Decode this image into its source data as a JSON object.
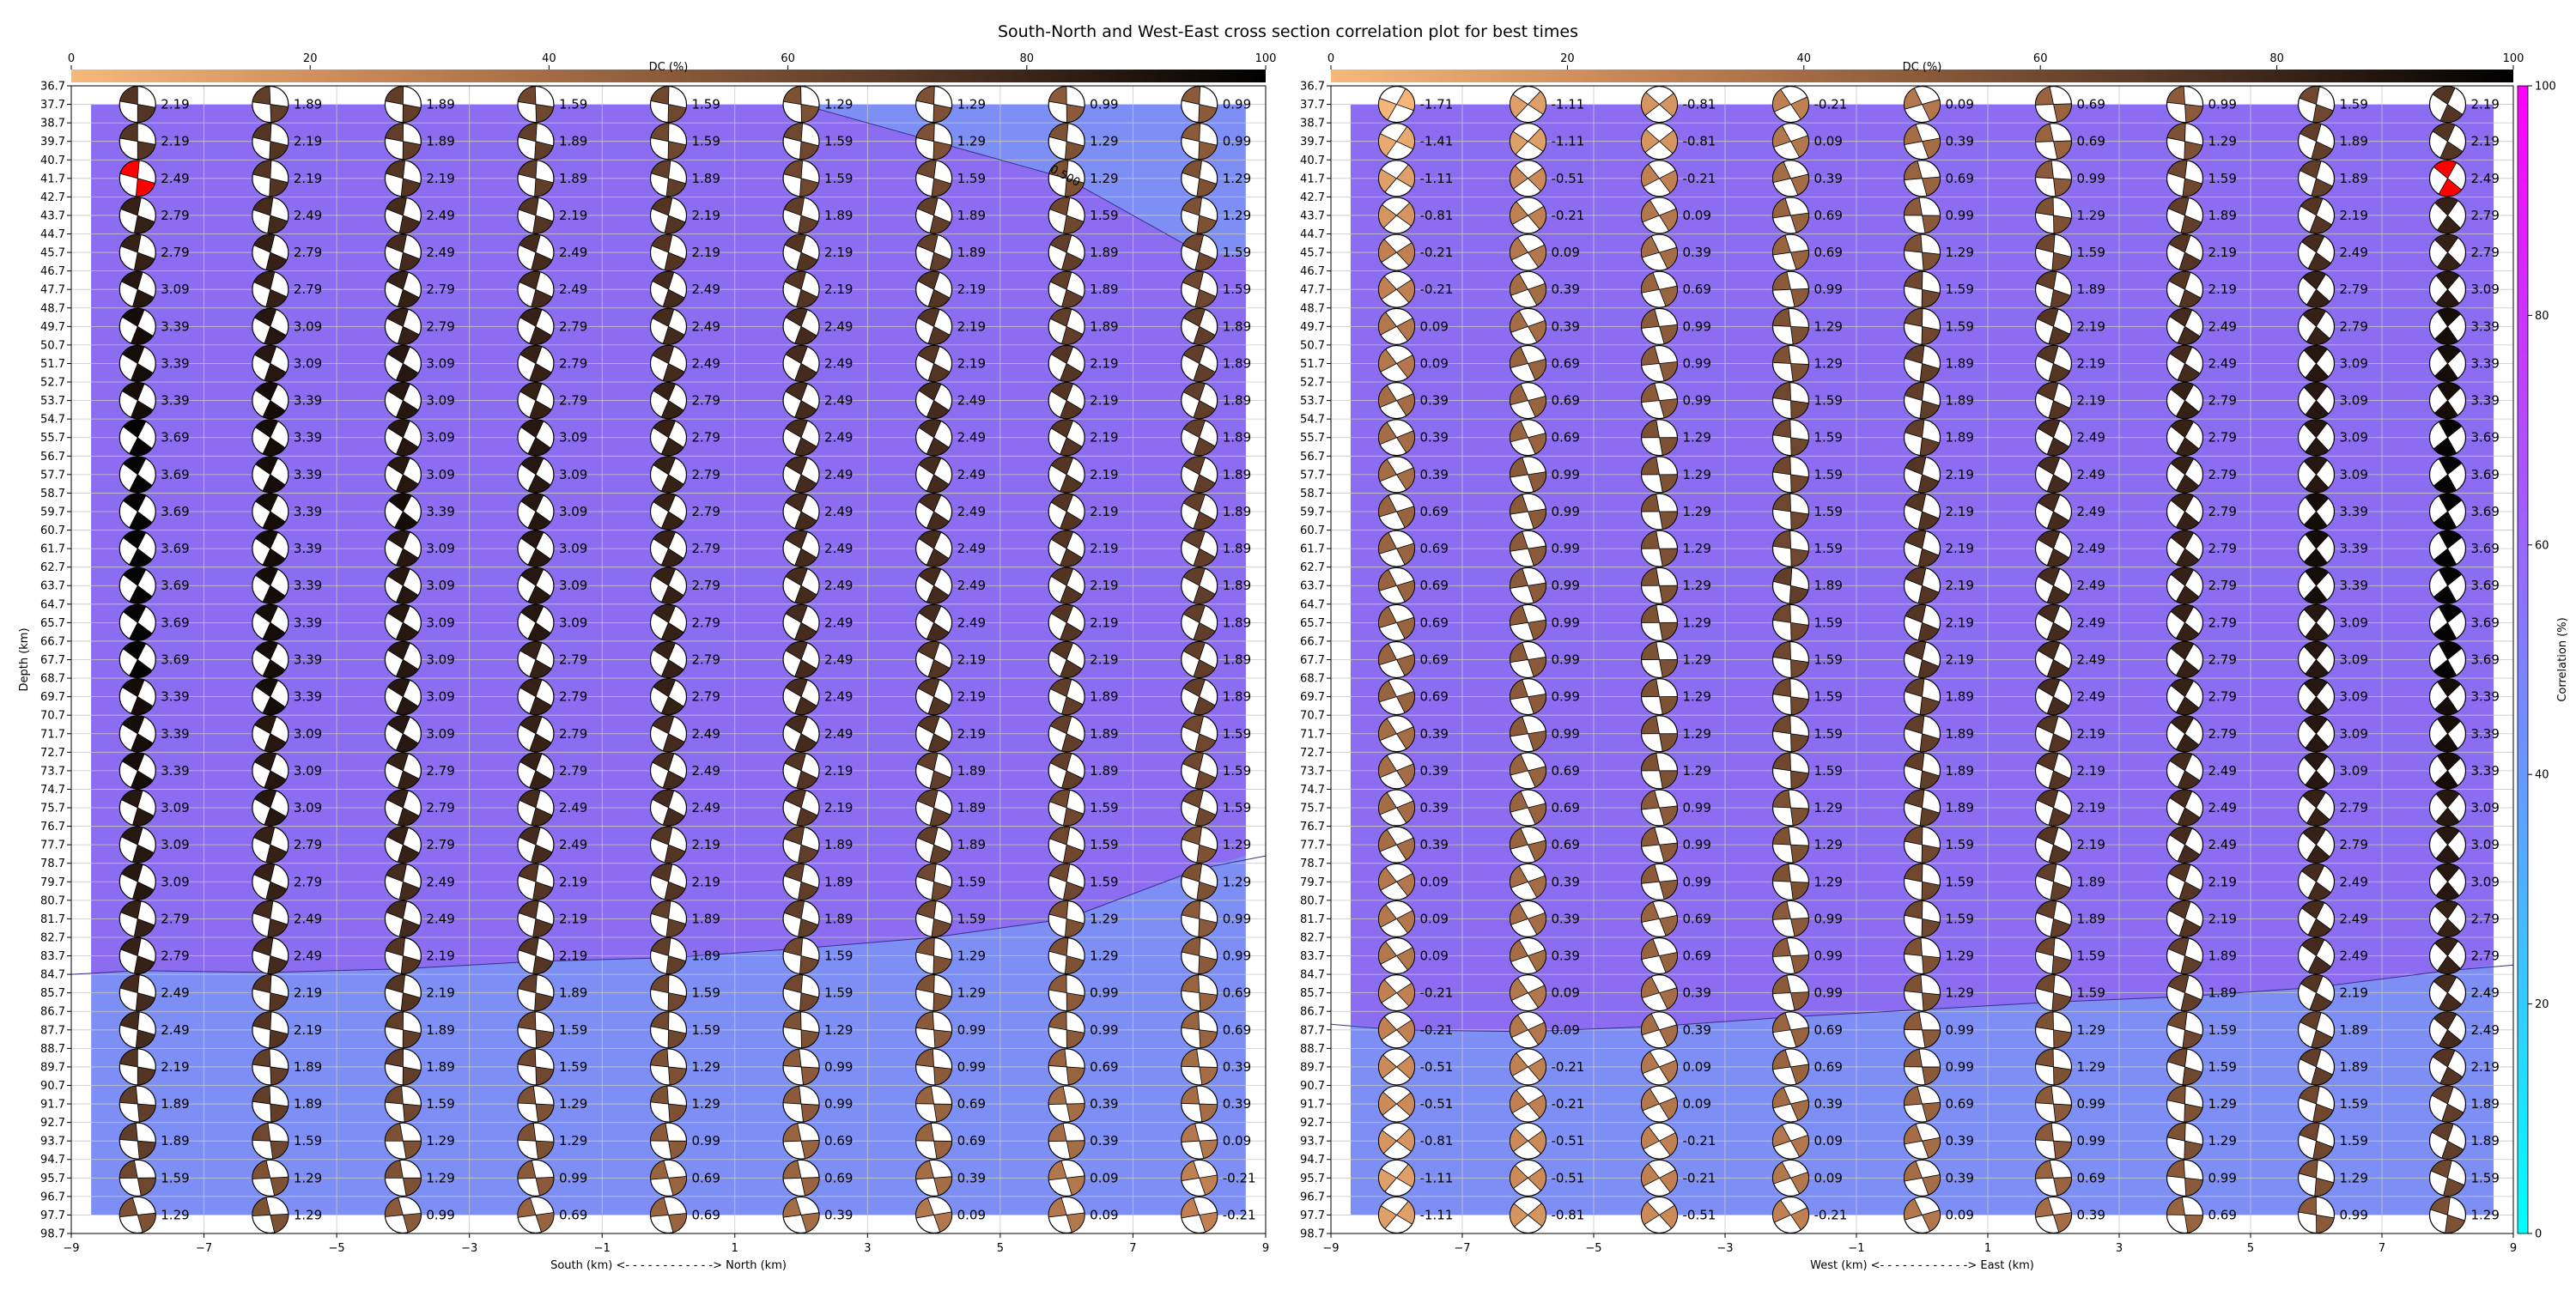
{
  "figure": {
    "title": "South-North and West-East cross section correlation plot for best times"
  },
  "dc_colorbar": {
    "label": "DC (%)",
    "ticks": [
      "0",
      "20",
      "40",
      "60",
      "80",
      "100"
    ],
    "colors": [
      "#f6b87a",
      "#c88656",
      "#8a5a3a",
      "#4a2e1f",
      "#000000"
    ]
  },
  "correlation_colorbar": {
    "label": "Correlation (%)",
    "ticks": [
      "0",
      "20",
      "40",
      "60",
      "80",
      "100"
    ],
    "colors": [
      "#00ffff",
      "#ff00ff"
    ],
    "range": [
      0,
      100
    ]
  },
  "chart_data": [
    {
      "type": "scatter",
      "subtype": "beachball-grid with correlation contour",
      "xlabel": "South (km) <- - - - - - - - - - - -> North (km)",
      "ylabel": "Depth (km)",
      "xlim": [
        -9,
        9
      ],
      "ylim": [
        98.7,
        36.7
      ],
      "y_inverted": true,
      "x_ticks": [
        "−9",
        "−7",
        "−5",
        "−3",
        "−1",
        "1",
        "3",
        "5",
        "7",
        "9"
      ],
      "y_ticks": [
        "36.7",
        "37.7",
        "38.7",
        "39.7",
        "40.7",
        "41.7",
        "42.7",
        "43.7",
        "44.7",
        "45.7",
        "46.7",
        "47.7",
        "48.7",
        "49.7",
        "50.7",
        "51.7",
        "52.7",
        "53.7",
        "54.7",
        "55.7",
        "56.7",
        "57.7",
        "58.7",
        "59.7",
        "60.7",
        "61.7",
        "62.7",
        "63.7",
        "64.7",
        "65.7",
        "66.7",
        "67.7",
        "68.7",
        "69.7",
        "70.7",
        "71.7",
        "72.7",
        "73.7",
        "74.7",
        "75.7",
        "76.7",
        "77.7",
        "78.7",
        "79.7",
        "80.7",
        "81.7",
        "82.7",
        "83.7",
        "84.7",
        "85.7",
        "86.7",
        "87.7",
        "88.7",
        "89.7",
        "90.7",
        "91.7",
        "92.7",
        "93.7",
        "94.7",
        "95.7",
        "96.7",
        "97.7",
        "98.7"
      ],
      "x_positions": [
        -8,
        -6,
        -4,
        -2,
        0,
        2,
        4,
        6,
        8
      ],
      "depths": [
        37.7,
        39.7,
        41.7,
        43.7,
        45.7,
        47.7,
        49.7,
        51.7,
        53.7,
        55.7,
        57.7,
        59.7,
        61.7,
        63.7,
        65.7,
        67.7,
        69.7,
        71.7,
        73.7,
        75.7,
        77.7,
        79.7,
        81.7,
        83.7,
        85.7,
        87.7,
        89.7,
        91.7,
        93.7,
        95.7,
        97.7
      ],
      "values": [
        [
          "2.19",
          "1.89",
          "1.89",
          "1.59",
          "1.59",
          "1.29",
          "1.29",
          "0.99",
          "0.99"
        ],
        [
          "2.19",
          "2.19",
          "1.89",
          "1.89",
          "1.59",
          "1.59",
          "1.29",
          "1.29",
          "0.99"
        ],
        [
          "2.49",
          "2.19",
          "2.19",
          "1.89",
          "1.89",
          "1.59",
          "1.59",
          "1.29",
          "1.29"
        ],
        [
          "2.79",
          "2.49",
          "2.49",
          "2.19",
          "2.19",
          "1.89",
          "1.89",
          "1.59",
          "1.29"
        ],
        [
          "2.79",
          "2.79",
          "2.49",
          "2.49",
          "2.19",
          "2.19",
          "1.89",
          "1.89",
          "1.59"
        ],
        [
          "3.09",
          "2.79",
          "2.79",
          "2.49",
          "2.49",
          "2.19",
          "2.19",
          "1.89",
          "1.59"
        ],
        [
          "3.39",
          "3.09",
          "2.79",
          "2.79",
          "2.49",
          "2.49",
          "2.19",
          "1.89",
          "1.89"
        ],
        [
          "3.39",
          "3.09",
          "3.09",
          "2.79",
          "2.49",
          "2.49",
          "2.19",
          "2.19",
          "1.89"
        ],
        [
          "3.39",
          "3.39",
          "3.09",
          "2.79",
          "2.79",
          "2.49",
          "2.49",
          "2.19",
          "1.89"
        ],
        [
          "3.69",
          "3.39",
          "3.09",
          "3.09",
          "2.79",
          "2.49",
          "2.49",
          "2.19",
          "1.89"
        ],
        [
          "3.69",
          "3.39",
          "3.09",
          "3.09",
          "2.79",
          "2.49",
          "2.49",
          "2.19",
          "1.89"
        ],
        [
          "3.69",
          "3.39",
          "3.39",
          "3.09",
          "2.79",
          "2.49",
          "2.49",
          "2.19",
          "1.89"
        ],
        [
          "3.69",
          "3.39",
          "3.09",
          "3.09",
          "2.79",
          "2.49",
          "2.49",
          "2.19",
          "1.89"
        ],
        [
          "3.69",
          "3.39",
          "3.09",
          "3.09",
          "2.79",
          "2.49",
          "2.49",
          "2.19",
          "1.89"
        ],
        [
          "3.69",
          "3.39",
          "3.09",
          "3.09",
          "2.79",
          "2.49",
          "2.49",
          "2.19",
          "1.89"
        ],
        [
          "3.69",
          "3.39",
          "3.09",
          "2.79",
          "2.79",
          "2.49",
          "2.19",
          "2.19",
          "1.89"
        ],
        [
          "3.39",
          "3.39",
          "3.09",
          "2.79",
          "2.79",
          "2.49",
          "2.19",
          "1.89",
          "1.89"
        ],
        [
          "3.39",
          "3.09",
          "3.09",
          "2.79",
          "2.49",
          "2.49",
          "2.19",
          "1.89",
          "1.59"
        ],
        [
          "3.39",
          "3.09",
          "2.79",
          "2.79",
          "2.49",
          "2.19",
          "1.89",
          "1.89",
          "1.59"
        ],
        [
          "3.09",
          "3.09",
          "2.79",
          "2.49",
          "2.49",
          "2.19",
          "1.89",
          "1.59",
          "1.59"
        ],
        [
          "3.09",
          "2.79",
          "2.79",
          "2.49",
          "2.19",
          "1.89",
          "1.89",
          "1.59",
          "1.29"
        ],
        [
          "3.09",
          "2.79",
          "2.49",
          "2.19",
          "2.19",
          "1.89",
          "1.59",
          "1.59",
          "1.29"
        ],
        [
          "2.79",
          "2.49",
          "2.49",
          "2.19",
          "1.89",
          "1.89",
          "1.59",
          "1.29",
          "0.99"
        ],
        [
          "2.79",
          "2.49",
          "2.19",
          "2.19",
          "1.89",
          "1.59",
          "1.29",
          "1.29",
          "0.99"
        ],
        [
          "2.49",
          "2.19",
          "2.19",
          "1.89",
          "1.59",
          "1.59",
          "1.29",
          "0.99",
          "0.69"
        ],
        [
          "2.49",
          "2.19",
          "1.89",
          "1.59",
          "1.59",
          "1.29",
          "0.99",
          "0.99",
          "0.69"
        ],
        [
          "2.19",
          "1.89",
          "1.89",
          "1.59",
          "1.29",
          "0.99",
          "0.99",
          "0.69",
          "0.39"
        ],
        [
          "1.89",
          "1.89",
          "1.59",
          "1.29",
          "1.29",
          "0.99",
          "0.69",
          "0.39",
          "0.39"
        ],
        [
          "1.89",
          "1.59",
          "1.29",
          "1.29",
          "0.99",
          "0.69",
          "0.69",
          "0.39",
          "0.09"
        ],
        [
          "1.59",
          "1.29",
          "1.29",
          "0.99",
          "0.69",
          "0.69",
          "0.39",
          "0.09",
          "-0.21"
        ],
        [
          "1.29",
          "1.29",
          "0.99",
          "0.69",
          "0.69",
          "0.39",
          "0.09",
          "0.09",
          "-0.21"
        ]
      ],
      "best_solution": {
        "x": -8,
        "depth": 41.7
      },
      "contours": [
        {
          "label": "0.500",
          "points": [
            [
              2,
              37.7
            ],
            [
              4,
              39.7
            ],
            [
              6,
              41.7
            ],
            [
              8,
              45.7
            ]
          ]
        },
        {
          "label": "",
          "points": [
            [
              -9,
              84.7
            ],
            [
              -8,
              84.5
            ],
            [
              -6,
              84.6
            ],
            [
              -4,
              84.4
            ],
            [
              -2,
              84.0
            ],
            [
              0,
              83.8
            ],
            [
              2,
              83.3
            ],
            [
              4,
              82.7
            ],
            [
              6,
              81.7
            ],
            [
              8,
              79.0
            ],
            [
              9,
              78.3
            ]
          ]
        }
      ]
    },
    {
      "type": "scatter",
      "subtype": "beachball-grid with correlation contour",
      "xlabel": "West (km) <- - - - - - - - - - - -> East (km)",
      "ylabel": "",
      "xlim": [
        -9,
        9
      ],
      "ylim": [
        98.7,
        36.7
      ],
      "y_inverted": true,
      "x_ticks": [
        "−9",
        "−7",
        "−5",
        "−3",
        "−1",
        "1",
        "3",
        "5",
        "7",
        "9"
      ],
      "y_ticks": [
        "36.7",
        "37.7",
        "38.7",
        "39.7",
        "40.7",
        "41.7",
        "42.7",
        "43.7",
        "44.7",
        "45.7",
        "46.7",
        "47.7",
        "48.7",
        "49.7",
        "50.7",
        "51.7",
        "52.7",
        "53.7",
        "54.7",
        "55.7",
        "56.7",
        "57.7",
        "58.7",
        "59.7",
        "60.7",
        "61.7",
        "62.7",
        "63.7",
        "64.7",
        "65.7",
        "66.7",
        "67.7",
        "68.7",
        "69.7",
        "70.7",
        "71.7",
        "72.7",
        "73.7",
        "74.7",
        "75.7",
        "76.7",
        "77.7",
        "78.7",
        "79.7",
        "80.7",
        "81.7",
        "82.7",
        "83.7",
        "84.7",
        "85.7",
        "86.7",
        "87.7",
        "88.7",
        "89.7",
        "90.7",
        "91.7",
        "92.7",
        "93.7",
        "94.7",
        "95.7",
        "96.7",
        "97.7",
        "98.7"
      ],
      "x_positions": [
        -8,
        -6,
        -4,
        -2,
        0,
        2,
        4,
        6,
        8
      ],
      "depths": [
        37.7,
        39.7,
        41.7,
        43.7,
        45.7,
        47.7,
        49.7,
        51.7,
        53.7,
        55.7,
        57.7,
        59.7,
        61.7,
        63.7,
        65.7,
        67.7,
        69.7,
        71.7,
        73.7,
        75.7,
        77.7,
        79.7,
        81.7,
        83.7,
        85.7,
        87.7,
        89.7,
        91.7,
        93.7,
        95.7,
        97.7
      ],
      "values": [
        [
          "-1.71",
          "-1.11",
          "-0.81",
          "-0.21",
          "0.09",
          "0.69",
          "0.99",
          "1.59",
          "2.19"
        ],
        [
          "-1.41",
          "-1.11",
          "-0.81",
          "0.09",
          "0.39",
          "0.69",
          "1.29",
          "1.89",
          "2.19"
        ],
        [
          "-1.11",
          "-0.51",
          "-0.21",
          "0.39",
          "0.69",
          "0.99",
          "1.59",
          "1.89",
          "2.49"
        ],
        [
          "-0.81",
          "-0.21",
          "0.09",
          "0.69",
          "0.99",
          "1.29",
          "1.89",
          "2.19",
          "2.79"
        ],
        [
          "-0.21",
          "0.09",
          "0.39",
          "0.69",
          "1.29",
          "1.59",
          "2.19",
          "2.49",
          "2.79"
        ],
        [
          "-0.21",
          "0.39",
          "0.69",
          "0.99",
          "1.59",
          "1.89",
          "2.19",
          "2.79",
          "3.09"
        ],
        [
          "0.09",
          "0.39",
          "0.99",
          "1.29",
          "1.59",
          "2.19",
          "2.49",
          "2.79",
          "3.39"
        ],
        [
          "0.09",
          "0.69",
          "0.99",
          "1.29",
          "1.89",
          "2.19",
          "2.49",
          "3.09",
          "3.39"
        ],
        [
          "0.39",
          "0.69",
          "0.99",
          "1.59",
          "1.89",
          "2.19",
          "2.79",
          "3.09",
          "3.39"
        ],
        [
          "0.39",
          "0.69",
          "1.29",
          "1.59",
          "1.89",
          "2.49",
          "2.79",
          "3.09",
          "3.69"
        ],
        [
          "0.39",
          "0.99",
          "1.29",
          "1.59",
          "2.19",
          "2.49",
          "2.79",
          "3.09",
          "3.69"
        ],
        [
          "0.69",
          "0.99",
          "1.29",
          "1.59",
          "2.19",
          "2.49",
          "2.79",
          "3.39",
          "3.69"
        ],
        [
          "0.69",
          "0.99",
          "1.29",
          "1.59",
          "2.19",
          "2.49",
          "2.79",
          "3.39",
          "3.69"
        ],
        [
          "0.69",
          "0.99",
          "1.29",
          "1.89",
          "2.19",
          "2.49",
          "2.79",
          "3.39",
          "3.69"
        ],
        [
          "0.69",
          "0.99",
          "1.29",
          "1.59",
          "2.19",
          "2.49",
          "2.79",
          "3.09",
          "3.69"
        ],
        [
          "0.69",
          "0.99",
          "1.29",
          "1.59",
          "2.19",
          "2.49",
          "2.79",
          "3.09",
          "3.69"
        ],
        [
          "0.69",
          "0.99",
          "1.29",
          "1.59",
          "1.89",
          "2.49",
          "2.79",
          "3.09",
          "3.39"
        ],
        [
          "0.39",
          "0.99",
          "1.29",
          "1.59",
          "1.89",
          "2.19",
          "2.79",
          "3.09",
          "3.39"
        ],
        [
          "0.39",
          "0.69",
          "1.29",
          "1.59",
          "1.89",
          "2.19",
          "2.49",
          "3.09",
          "3.39"
        ],
        [
          "0.39",
          "0.69",
          "0.99",
          "1.29",
          "1.89",
          "2.19",
          "2.49",
          "2.79",
          "3.09"
        ],
        [
          "0.39",
          "0.69",
          "0.99",
          "1.29",
          "1.59",
          "2.19",
          "2.49",
          "2.79",
          "3.09"
        ],
        [
          "0.09",
          "0.39",
          "0.99",
          "1.29",
          "1.59",
          "1.89",
          "2.19",
          "2.49",
          "3.09"
        ],
        [
          "0.09",
          "0.39",
          "0.69",
          "0.99",
          "1.59",
          "1.89",
          "2.19",
          "2.49",
          "2.79"
        ],
        [
          "0.09",
          "0.39",
          "0.69",
          "0.99",
          "1.29",
          "1.59",
          "1.89",
          "2.49",
          "2.79"
        ],
        [
          "-0.21",
          "0.09",
          "0.39",
          "0.99",
          "1.29",
          "1.59",
          "1.89",
          "2.19",
          "2.49"
        ],
        [
          "-0.21",
          "0.09",
          "0.39",
          "0.69",
          "0.99",
          "1.29",
          "1.59",
          "1.89",
          "2.49"
        ],
        [
          "-0.51",
          "-0.21",
          "0.09",
          "0.69",
          "0.99",
          "1.29",
          "1.59",
          "1.89",
          "2.19"
        ],
        [
          "-0.51",
          "-0.21",
          "0.09",
          "0.39",
          "0.69",
          "0.99",
          "1.29",
          "1.59",
          "1.89"
        ],
        [
          "-0.81",
          "-0.51",
          "-0.21",
          "0.09",
          "0.39",
          "0.99",
          "1.29",
          "1.59",
          "1.89"
        ],
        [
          "-1.11",
          "-0.51",
          "-0.21",
          "0.09",
          "0.39",
          "0.69",
          "0.99",
          "1.29",
          "1.59"
        ],
        [
          "-1.11",
          "-0.81",
          "-0.51",
          "-0.21",
          "0.09",
          "0.39",
          "0.69",
          "0.99",
          "1.29"
        ]
      ],
      "best_solution": {
        "x": 8,
        "depth": 41.7
      },
      "contours": [
        {
          "label": "",
          "points": [
            [
              -9,
              87.4
            ],
            [
              -8,
              87.7
            ],
            [
              -6,
              87.8
            ],
            [
              -4,
              87.5
            ],
            [
              -2,
              87.0
            ],
            [
              0,
              86.6
            ],
            [
              2,
              86.2
            ],
            [
              4,
              85.9
            ],
            [
              6,
              85.4
            ],
            [
              8,
              84.5
            ],
            [
              9,
              84.2
            ]
          ]
        }
      ]
    }
  ]
}
